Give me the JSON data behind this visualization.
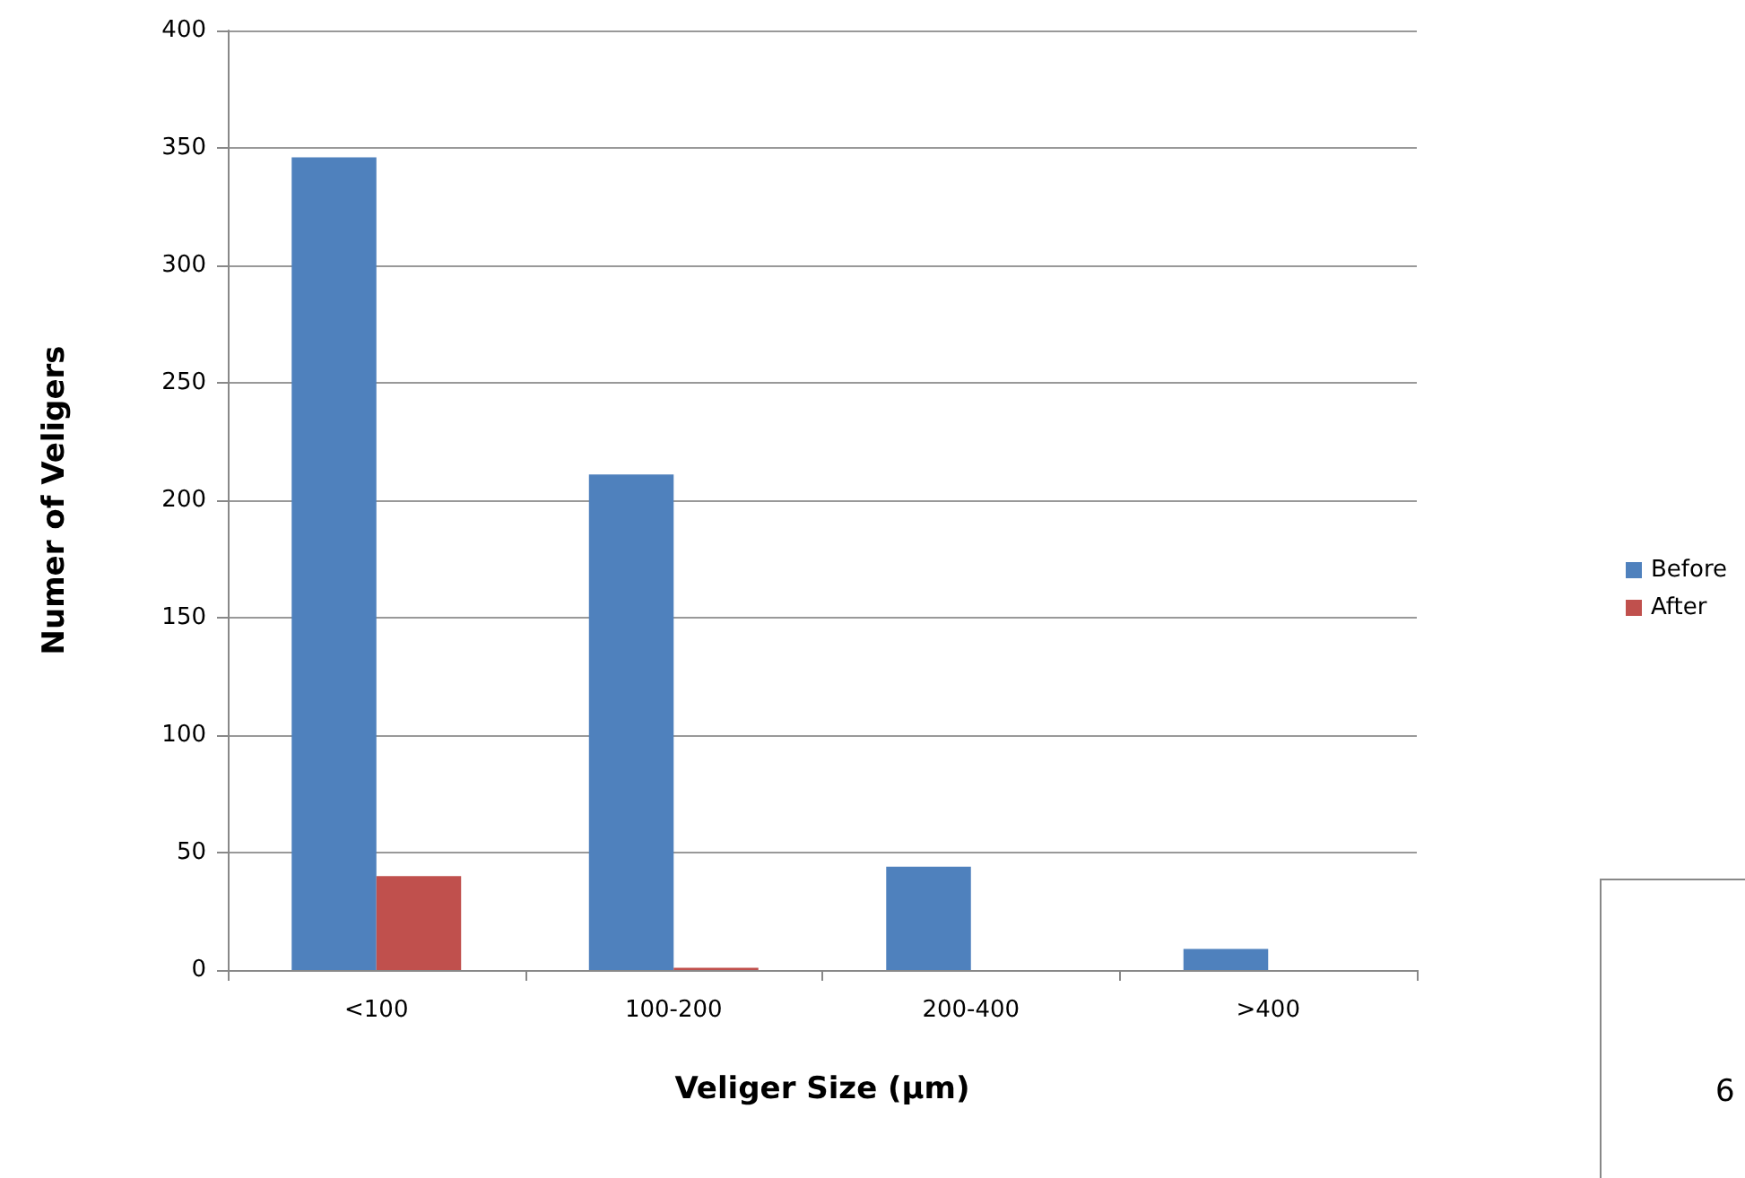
{
  "chart_data": {
    "type": "bar",
    "xlabel": "Veliger Size (µm)",
    "ylabel": "Numer of Veligers",
    "categories": [
      "<100",
      "100-200",
      "200-400",
      ">400"
    ],
    "series": [
      {
        "name": "Before",
        "color": "#4f81bd",
        "values": [
          346,
          211,
          44,
          9
        ]
      },
      {
        "name": "After",
        "color": "#c0504d",
        "values": [
          40,
          1,
          0,
          0
        ]
      }
    ],
    "ylim": [
      0,
      400
    ],
    "yticks": [
      0,
      50,
      100,
      150,
      200,
      250,
      300,
      350,
      400
    ],
    "grid": "y",
    "legend": "right",
    "annotations": [
      "6"
    ]
  }
}
